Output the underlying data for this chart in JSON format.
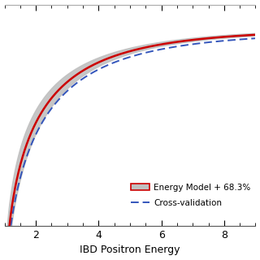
{
  "title": "",
  "xlabel": "IBD Positron Energy",
  "ylabel": "",
  "xlim": [
    1.0,
    9.0
  ],
  "ylim": [
    0.3,
    1.08
  ],
  "xticks": [
    2,
    4,
    6,
    8
  ],
  "line_color": "#cc0000",
  "band_color": "#c0c0c0",
  "cv_color": "#3355bb",
  "background_color": "#ffffff",
  "legend_label_model": "Energy Model + 68.3%",
  "legend_label_cv": "Cross-validation",
  "top_border_color": "#aaaaaa"
}
